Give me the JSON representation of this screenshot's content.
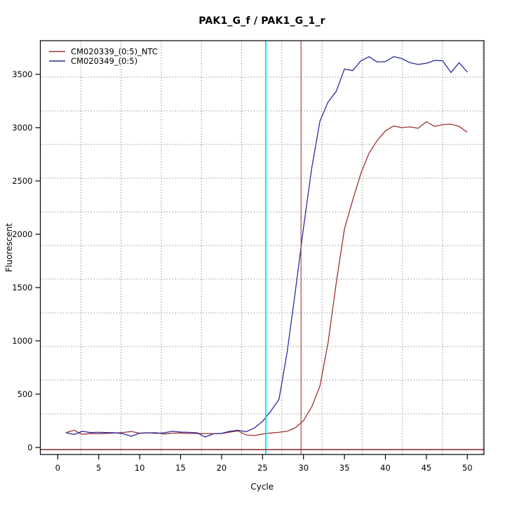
{
  "title": "PAK1_G_f / PAK1_G_1_r",
  "x_axis": {
    "label": "Cycle",
    "ticks": [
      0,
      5,
      10,
      15,
      20,
      25,
      30,
      35,
      40,
      45,
      50
    ]
  },
  "y_axis": {
    "label": "Fluorescent",
    "ticks": [
      0,
      500,
      1000,
      1500,
      2000,
      2500,
      3000,
      3500
    ]
  },
  "legend": {
    "position": "top-left",
    "items": [
      {
        "label": "CM020339_(0:5)_NTC",
        "color": "#9b3332"
      },
      {
        "label": "CM020349_(0:5)",
        "color": "#2c2c9e"
      }
    ]
  },
  "chart_data": {
    "type": "line",
    "title": "PAK1_G_f / PAK1_G_1_r",
    "xlabel": "Cycle",
    "ylabel": "Fluorescent",
    "x_range": [
      0,
      52
    ],
    "y_range": [
      0,
      3820
    ],
    "grid": "dotted",
    "x_start_cycle": 1,
    "series": [
      {
        "name": "CM020339_(0:5)_NTC",
        "color": "#9b3332",
        "values": [
          140,
          162,
          123,
          131,
          128,
          133,
          136,
          141,
          150,
          134,
          136,
          139,
          126,
          134,
          136,
          131,
          133,
          131,
          129,
          131,
          144,
          156,
          118,
          112,
          126,
          136,
          142,
          152,
          185,
          252,
          380,
          575,
          980,
          1545,
          2050,
          2320,
          2570,
          2760,
          2880,
          2970,
          3016,
          3000,
          3007,
          2994,
          3056,
          3011,
          3029,
          3033,
          3011,
          2957
        ]
      },
      {
        "name": "CM020349_(0:5)",
        "color": "#2c2c9e",
        "values": [
          138,
          122,
          152,
          140,
          142,
          140,
          138,
          128,
          105,
          135,
          138,
          132,
          138,
          152,
          145,
          142,
          138,
          98,
          128,
          132,
          152,
          162,
          148,
          182,
          245,
          340,
          450,
          890,
          1460,
          2060,
          2620,
          3060,
          3240,
          3340,
          3550,
          3535,
          3627,
          3666,
          3616,
          3620,
          3666,
          3648,
          3609,
          3593,
          3604,
          3631,
          3627,
          3517,
          3609,
          3521
        ]
      }
    ],
    "markers": {
      "vertical_lines": [
        {
          "x": 25.4,
          "color": "#00efef",
          "width": 2
        },
        {
          "x": 29.7,
          "color": "#b24743",
          "width": 1.2
        }
      ],
      "horizontal_lines": [
        {
          "y": 0,
          "color": "#8b2323",
          "width": 1.5
        }
      ]
    }
  }
}
